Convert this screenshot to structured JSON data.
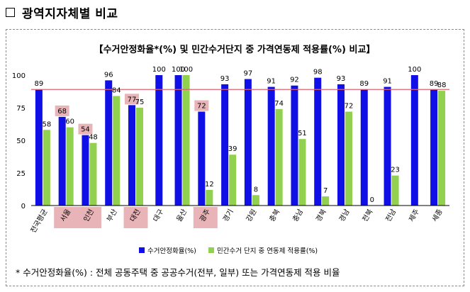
{
  "heading": {
    "title": "광역지자체별 비교"
  },
  "chart_data": {
    "type": "bar",
    "title": "【수거안정화율*(%) 및 민간수거단지 중 가격연동제 적용률(%) 비교】",
    "categories": [
      "전국평균",
      "서울",
      "인천",
      "부산",
      "대전",
      "대구",
      "울산",
      "광주",
      "경기",
      "강원",
      "충북",
      "충남",
      "경북",
      "경남",
      "전북",
      "전남",
      "제주",
      "세종"
    ],
    "series": [
      {
        "name": "수거안정화율(%)",
        "values": [
          89,
          68,
          54,
          96,
          77,
          100,
          100,
          72,
          93,
          97,
          91,
          92,
          98,
          93,
          89,
          91,
          100,
          89
        ],
        "color": "#1010e6"
      },
      {
        "name": "민간수거 단지 중 연동제 적용률(%)",
        "values": [
          58,
          60,
          48,
          84,
          75,
          null,
          100,
          12,
          39,
          8,
          74,
          51,
          7,
          72,
          0,
          23,
          null,
          88
        ],
        "color": "#92d050"
      }
    ],
    "highlighted_categories": [
      "서울",
      "인천",
      "대전",
      "광주"
    ],
    "highlighted_values": [
      {
        "category": "서울",
        "value": 68
      },
      {
        "category": "인천",
        "value": 54
      },
      {
        "category": "대전",
        "value": 77
      },
      {
        "category": "광주",
        "value": 72
      }
    ],
    "reference_line": {
      "value": 89,
      "color": "#e06070"
    },
    "ylim": [
      0,
      100
    ],
    "yticks": [
      0,
      25,
      50,
      75,
      100
    ],
    "grid": false,
    "legend_position": "bottom-center",
    "highlight_color": "#e8b4b8"
  },
  "footnote": {
    "text": "* 수거안정화율(%) : 전체 공동주택 중 공공수거(전부, 일부) 또는 가격연동제 적용 비율"
  }
}
